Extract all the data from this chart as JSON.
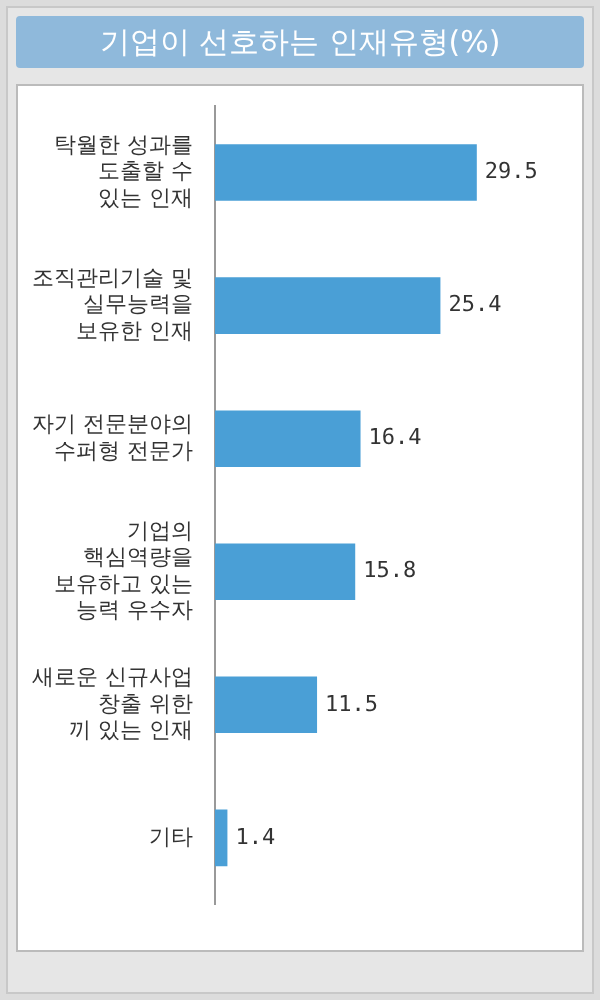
{
  "chart_data": {
    "type": "bar",
    "orientation": "horizontal",
    "title": "기업이 선호하는 인재유형(%)",
    "categories": [
      "탁월한 성과를\n도출할 수\n있는 인재",
      "조직관리기술 및\n실무능력을\n보유한 인재",
      "자기 전문분야의\n수퍼형 전문가",
      "기업의\n핵심역량을\n보유하고 있는\n능력 우수자",
      "새로운 신규사업\n창출 위한\n끼 있는 인재",
      "기타"
    ],
    "values": [
      29.5,
      25.4,
      16.4,
      15.8,
      11.5,
      1.4
    ],
    "color": "#4a9fd6",
    "data_labels": true,
    "grid": false,
    "legend": false
  }
}
